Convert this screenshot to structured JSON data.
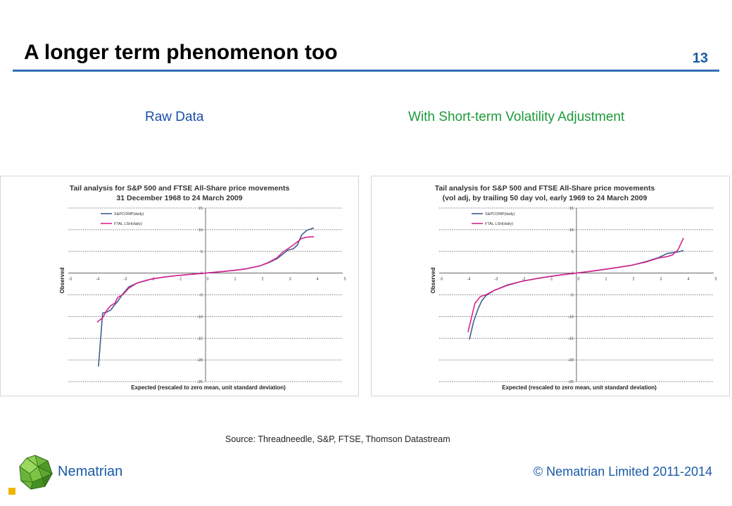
{
  "slide": {
    "title": "A longer term phenomenon too",
    "page_number": "13",
    "subtitle_left": "Raw Data",
    "subtitle_right": "With Short-term Volatility Adjustment",
    "source": "Source: Threadneedle,  S&P, FTSE, Thomson Datastream",
    "brand": "Nematrian",
    "copyright": "© Nematrian Limited 2011-2014",
    "accent_color": "#2f6db5"
  },
  "chart_data": [
    {
      "type": "line",
      "title": "Tail analysis for S&P 500 and FTSE All-Share price movements",
      "subtitle": "31 December 1968 to 24 March 2009",
      "xlabel": "Expected (rescaled to zero mean, unit standard deviation)",
      "ylabel": "Observed",
      "xlim": [
        -5,
        5
      ],
      "ylim": [
        -25,
        15
      ],
      "xticks": [
        "-5",
        "-4",
        "-3",
        "-2",
        "-1",
        "0",
        "1",
        "2",
        "3",
        "4",
        "5"
      ],
      "yticks": [
        "15",
        "10",
        "5",
        "0",
        "-5",
        "-10",
        "-15",
        "-20",
        "-25"
      ],
      "grid": true,
      "legend_position": "top-left",
      "series": [
        {
          "name": "S&PCOMP(daily)",
          "color": "#3d5f8f",
          "x": [
            -3.9,
            -3.75,
            -3.6,
            -3.45,
            -3.35,
            -3.2,
            -3.0,
            -2.8,
            -2.5,
            -2.0,
            -1.5,
            -1.0,
            -0.5,
            0,
            0.5,
            1.0,
            1.5,
            2.0,
            2.3,
            2.6,
            2.8,
            3.0,
            3.2,
            3.35,
            3.5,
            3.7,
            3.95
          ],
          "y": [
            -21.5,
            -9.2,
            -9.0,
            -8.5,
            -7.6,
            -6.5,
            -4.7,
            -3.2,
            -2.3,
            -1.4,
            -0.9,
            -0.55,
            -0.25,
            0,
            0.3,
            0.6,
            1.0,
            1.7,
            2.4,
            3.3,
            4.3,
            5.3,
            5.6,
            6.5,
            8.8,
            9.9,
            10.4
          ]
        },
        {
          "name": "FTAL LSH(daily)",
          "color": "#d6248f",
          "x": [
            -3.95,
            -3.75,
            -3.6,
            -3.45,
            -3.3,
            -3.2,
            -3.0,
            -2.8,
            -2.5,
            -2.0,
            -1.5,
            -1.0,
            -0.5,
            0,
            0.5,
            1.0,
            1.5,
            2.0,
            2.3,
            2.6,
            2.8,
            3.0,
            3.2,
            3.35,
            3.5,
            3.7,
            3.95
          ],
          "y": [
            -11.3,
            -10.3,
            -8.6,
            -7.5,
            -6.9,
            -5.6,
            -4.9,
            -3.5,
            -2.3,
            -1.4,
            -0.9,
            -0.55,
            -0.25,
            0,
            0.3,
            0.6,
            1.0,
            1.7,
            2.5,
            3.5,
            4.8,
            5.6,
            6.5,
            7.2,
            8.0,
            8.3,
            8.4
          ]
        }
      ]
    },
    {
      "type": "line",
      "title": "Tail analysis for S&P 500 and FTSE All-Share price movements",
      "subtitle": "(vol adj, by trailing 50 day vol, early 1969 to 24 March 2009",
      "xlabel": "Expected (rescaled to zero mean, unit standard deviation)",
      "ylabel": "Observed",
      "xlim": [
        -5,
        5
      ],
      "ylim": [
        -25,
        15
      ],
      "xticks": [
        "-5",
        "-4",
        "-3",
        "-2",
        "-1",
        "0",
        "1",
        "2",
        "3",
        "4",
        "5"
      ],
      "yticks": [
        "15",
        "10",
        "5",
        "0",
        "-5",
        "-10",
        "-15",
        "-20",
        "-25"
      ],
      "grid": true,
      "legend_position": "top-left",
      "series": [
        {
          "name": "S&PCOMP(daily)",
          "color": "#3d5f8f",
          "x": [
            -3.9,
            -3.75,
            -3.6,
            -3.45,
            -3.3,
            -3.0,
            -2.5,
            -2.0,
            -1.5,
            -1.0,
            -0.5,
            0,
            0.5,
            1.0,
            1.5,
            2.0,
            2.5,
            3.0,
            3.3,
            3.5,
            3.7,
            3.9
          ],
          "y": [
            -15.3,
            -11.2,
            -8.5,
            -6.4,
            -5.2,
            -4.0,
            -2.7,
            -1.9,
            -1.3,
            -0.8,
            -0.35,
            0,
            0.4,
            0.85,
            1.3,
            1.8,
            2.6,
            3.6,
            4.5,
            4.7,
            4.9,
            5.2
          ]
        },
        {
          "name": "FTAL LSH(daily)",
          "color": "#d6248f",
          "x": [
            -3.95,
            -3.7,
            -3.5,
            -3.3,
            -3.0,
            -2.5,
            -2.0,
            -1.5,
            -1.0,
            -0.5,
            0,
            0.5,
            1.0,
            1.5,
            2.0,
            2.5,
            3.0,
            3.3,
            3.5,
            3.7,
            3.9
          ],
          "y": [
            -13.6,
            -7.0,
            -5.4,
            -5.0,
            -4.0,
            -2.8,
            -1.9,
            -1.3,
            -0.8,
            -0.35,
            0,
            0.4,
            0.85,
            1.3,
            1.8,
            2.5,
            3.5,
            3.8,
            4.2,
            5.4,
            8.1
          ]
        }
      ]
    }
  ]
}
